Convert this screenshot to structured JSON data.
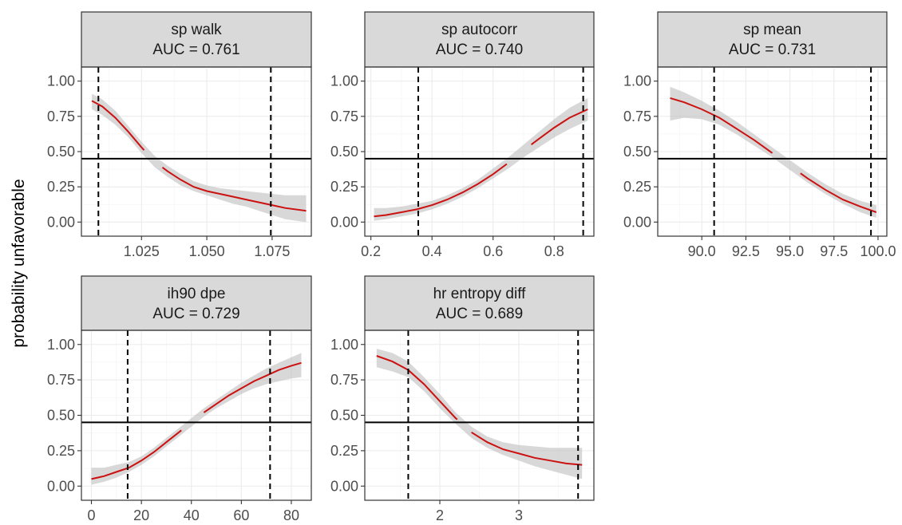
{
  "chart_data": {
    "type": "line",
    "ylabel": "probability unfavorable",
    "hline": 0.45,
    "panels": [
      {
        "title": "sp walk",
        "auc": "AUC = 0.761",
        "xlim": [
          1.002,
          1.09
        ],
        "ylim": [
          -0.1,
          1.1
        ],
        "xticks": [
          1.025,
          1.05,
          1.075
        ],
        "xticklabels": [
          "1.025",
          "1.050",
          "1.075"
        ],
        "yticks": [
          0,
          0.25,
          0.5,
          0.75,
          1
        ],
        "yticklabels": [
          "0.00",
          "0.25",
          "0.50",
          "0.75",
          "1.00"
        ],
        "vlines": [
          1.0085,
          1.0745
        ],
        "x": [
          1.006,
          1.01,
          1.015,
          1.02,
          1.025,
          1.03,
          1.035,
          1.04,
          1.045,
          1.05,
          1.055,
          1.06,
          1.065,
          1.07,
          1.075,
          1.08,
          1.088
        ],
        "y": [
          0.86,
          0.82,
          0.74,
          0.64,
          0.53,
          0.43,
          0.36,
          0.3,
          0.25,
          0.22,
          0.2,
          0.18,
          0.16,
          0.14,
          0.12,
          0.1,
          0.08
        ],
        "lower": [
          0.8,
          0.76,
          0.69,
          0.6,
          0.49,
          0.39,
          0.32,
          0.26,
          0.22,
          0.19,
          0.16,
          0.13,
          0.11,
          0.08,
          0.05,
          0.02,
          0.0
        ],
        "upper": [
          0.91,
          0.87,
          0.79,
          0.68,
          0.57,
          0.47,
          0.4,
          0.34,
          0.29,
          0.26,
          0.24,
          0.23,
          0.22,
          0.21,
          0.2,
          0.19,
          0.19
        ],
        "gaps": [
          [
            1.026,
            1.033
          ]
        ]
      },
      {
        "title": "sp autocorr",
        "auc": "AUC = 0.740",
        "xlim": [
          0.18,
          0.93
        ],
        "ylim": [
          -0.1,
          1.1
        ],
        "xticks": [
          0.2,
          0.4,
          0.6,
          0.8
        ],
        "xticklabels": [
          "0.2",
          "0.4",
          "0.6",
          "0.8"
        ],
        "yticks": [
          0,
          0.25,
          0.5,
          0.75,
          1
        ],
        "yticklabels": [
          "0.00",
          "0.25",
          "0.50",
          "0.75",
          "1.00"
        ],
        "vlines": [
          0.355,
          0.895
        ],
        "x": [
          0.21,
          0.25,
          0.3,
          0.35,
          0.4,
          0.45,
          0.5,
          0.55,
          0.6,
          0.65,
          0.7,
          0.75,
          0.8,
          0.85,
          0.91
        ],
        "y": [
          0.04,
          0.05,
          0.07,
          0.09,
          0.12,
          0.16,
          0.21,
          0.27,
          0.34,
          0.42,
          0.51,
          0.59,
          0.67,
          0.74,
          0.8
        ],
        "lower": [
          0.01,
          0.02,
          0.04,
          0.06,
          0.09,
          0.13,
          0.18,
          0.24,
          0.31,
          0.38,
          0.46,
          0.53,
          0.6,
          0.66,
          0.72
        ],
        "upper": [
          0.1,
          0.1,
          0.11,
          0.13,
          0.15,
          0.19,
          0.24,
          0.3,
          0.38,
          0.46,
          0.55,
          0.64,
          0.73,
          0.81,
          0.88
        ],
        "gaps": [
          [
            0.645,
            0.725
          ]
        ]
      },
      {
        "title": "sp mean",
        "auc": "AUC = 0.731",
        "xlim": [
          87.5,
          100.5
        ],
        "ylim": [
          -0.1,
          1.1
        ],
        "xticks": [
          90,
          92.5,
          95,
          97.5,
          100
        ],
        "xticklabels": [
          "90.0",
          "92.5",
          "95.0",
          "97.5",
          "100.0"
        ],
        "yticks": [
          0,
          0.25,
          0.5,
          0.75,
          1
        ],
        "yticklabels": [
          "0.00",
          "0.25",
          "0.50",
          "0.75",
          "1.00"
        ],
        "vlines": [
          90.7,
          99.6
        ],
        "x": [
          88.2,
          89.0,
          90.0,
          91.0,
          92.0,
          93.0,
          94.0,
          95.0,
          96.0,
          97.0,
          98.0,
          99.0,
          99.9
        ],
        "y": [
          0.88,
          0.85,
          0.8,
          0.74,
          0.66,
          0.58,
          0.49,
          0.4,
          0.31,
          0.23,
          0.16,
          0.11,
          0.07
        ],
        "lower": [
          0.72,
          0.74,
          0.73,
          0.69,
          0.62,
          0.54,
          0.46,
          0.37,
          0.28,
          0.2,
          0.13,
          0.07,
          0.03
        ],
        "upper": [
          0.96,
          0.92,
          0.86,
          0.79,
          0.71,
          0.62,
          0.53,
          0.44,
          0.35,
          0.27,
          0.2,
          0.15,
          0.12
        ],
        "gaps": [
          [
            94.0,
            95.6
          ]
        ]
      },
      {
        "title": "ih90 dpe",
        "auc": "AUC = 0.729",
        "xlim": [
          -4,
          88
        ],
        "ylim": [
          -0.1,
          1.1
        ],
        "xticks": [
          0,
          20,
          40,
          60,
          80
        ],
        "xticklabels": [
          "0",
          "20",
          "40",
          "60",
          "80"
        ],
        "yticks": [
          0,
          0.25,
          0.5,
          0.75,
          1
        ],
        "yticklabels": [
          "0.00",
          "0.25",
          "0.50",
          "0.75",
          "1.00"
        ],
        "vlines": [
          14.5,
          71.5
        ],
        "x": [
          0,
          5,
          10,
          15,
          20,
          25,
          30,
          35,
          40,
          45,
          50,
          55,
          60,
          65,
          70,
          75,
          80,
          84
        ],
        "y": [
          0.05,
          0.07,
          0.1,
          0.13,
          0.18,
          0.24,
          0.31,
          0.38,
          0.45,
          0.52,
          0.58,
          0.64,
          0.69,
          0.74,
          0.78,
          0.82,
          0.85,
          0.87
        ],
        "lower": [
          0.01,
          0.03,
          0.06,
          0.1,
          0.15,
          0.21,
          0.28,
          0.35,
          0.42,
          0.49,
          0.55,
          0.6,
          0.65,
          0.69,
          0.72,
          0.74,
          0.76,
          0.77
        ],
        "upper": [
          0.13,
          0.13,
          0.15,
          0.17,
          0.21,
          0.27,
          0.34,
          0.41,
          0.48,
          0.55,
          0.61,
          0.67,
          0.73,
          0.78,
          0.83,
          0.87,
          0.91,
          0.94
        ],
        "gaps": [
          [
            36,
            45
          ]
        ]
      },
      {
        "title": "hr entropy diff",
        "auc": "AUC = 0.689",
        "xlim": [
          1.05,
          3.95
        ],
        "ylim": [
          -0.1,
          1.1
        ],
        "xticks": [
          2,
          3
        ],
        "xticklabels": [
          "2",
          "3"
        ],
        "yticks": [
          0,
          0.25,
          0.5,
          0.75,
          1
        ],
        "yticklabels": [
          "0.00",
          "0.25",
          "0.50",
          "0.75",
          "1.00"
        ],
        "vlines": [
          1.6,
          3.75
        ],
        "x": [
          1.2,
          1.4,
          1.6,
          1.8,
          2.0,
          2.2,
          2.4,
          2.6,
          2.8,
          3.0,
          3.2,
          3.4,
          3.6,
          3.8
        ],
        "y": [
          0.92,
          0.88,
          0.82,
          0.72,
          0.6,
          0.48,
          0.38,
          0.31,
          0.26,
          0.23,
          0.2,
          0.18,
          0.16,
          0.15
        ],
        "lower": [
          0.84,
          0.81,
          0.77,
          0.67,
          0.55,
          0.44,
          0.34,
          0.27,
          0.22,
          0.18,
          0.14,
          0.11,
          0.08,
          0.05
        ],
        "upper": [
          0.97,
          0.94,
          0.88,
          0.77,
          0.65,
          0.52,
          0.42,
          0.35,
          0.31,
          0.29,
          0.28,
          0.27,
          0.27,
          0.27
        ],
        "gaps": [
          [
            2.22,
            2.4
          ]
        ]
      }
    ]
  }
}
